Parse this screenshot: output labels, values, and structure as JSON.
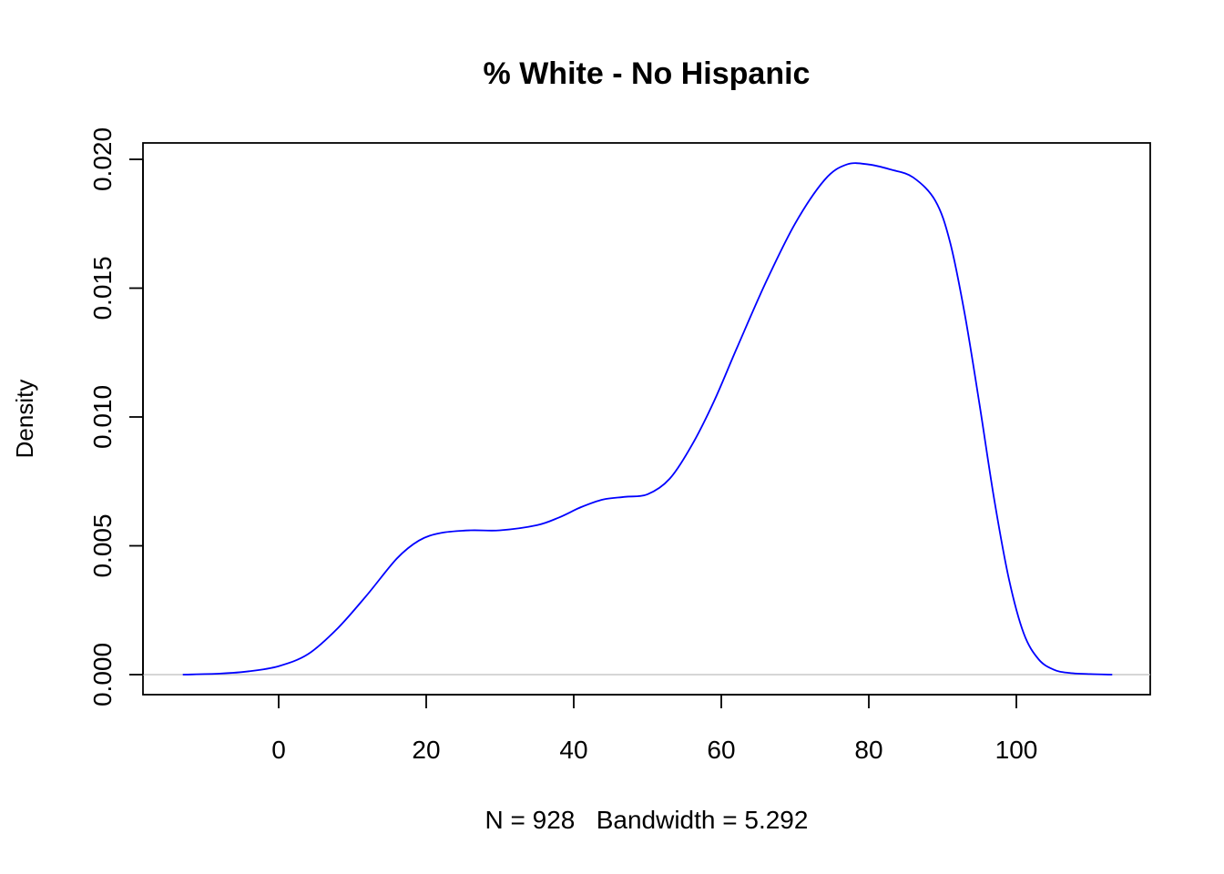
{
  "chart_data": {
    "type": "line",
    "title": "% White - No Hispanic",
    "xlabel": "N = 928   Bandwidth = 5.292",
    "ylabel": "Density",
    "xlim": [
      -16,
      121
    ],
    "ylim": [
      0,
      0.02
    ],
    "x_ticks": [
      "0",
      "20",
      "40",
      "60",
      "80",
      "100"
    ],
    "y_ticks": [
      "0.000",
      "0.005",
      "0.010",
      "0.015",
      "0.020"
    ],
    "grid": false,
    "legend": "none",
    "colors": {
      "line": "#0000ff",
      "zero_line": "#bebebe",
      "axes": "#000000"
    },
    "series": [
      {
        "x": [
          -13,
          -8,
          -4,
          0,
          4,
          8,
          12,
          16,
          19,
          22,
          26,
          30,
          35,
          38,
          41,
          44,
          47,
          50,
          53,
          56,
          59,
          62,
          66,
          70,
          74,
          77,
          80,
          83,
          86,
          89,
          91,
          93,
          95,
          97,
          99,
          101,
          103,
          105,
          107,
          110,
          113
        ],
        "y": [
          0.0,
          4e-05,
          0.00013,
          0.00033,
          0.0008,
          0.0018,
          0.0031,
          0.0045,
          0.0052,
          0.0055,
          0.0056,
          0.0056,
          0.0058,
          0.0061,
          0.0065,
          0.0068,
          0.0069,
          0.007,
          0.0076,
          0.0089,
          0.0106,
          0.0126,
          0.0152,
          0.0175,
          0.0192,
          0.0198,
          0.0198,
          0.0196,
          0.0193,
          0.0184,
          0.0168,
          0.014,
          0.0105,
          0.0068,
          0.0037,
          0.0016,
          0.0006,
          0.0002,
          7e-05,
          2e-05,
          0.0
        ]
      }
    ]
  }
}
